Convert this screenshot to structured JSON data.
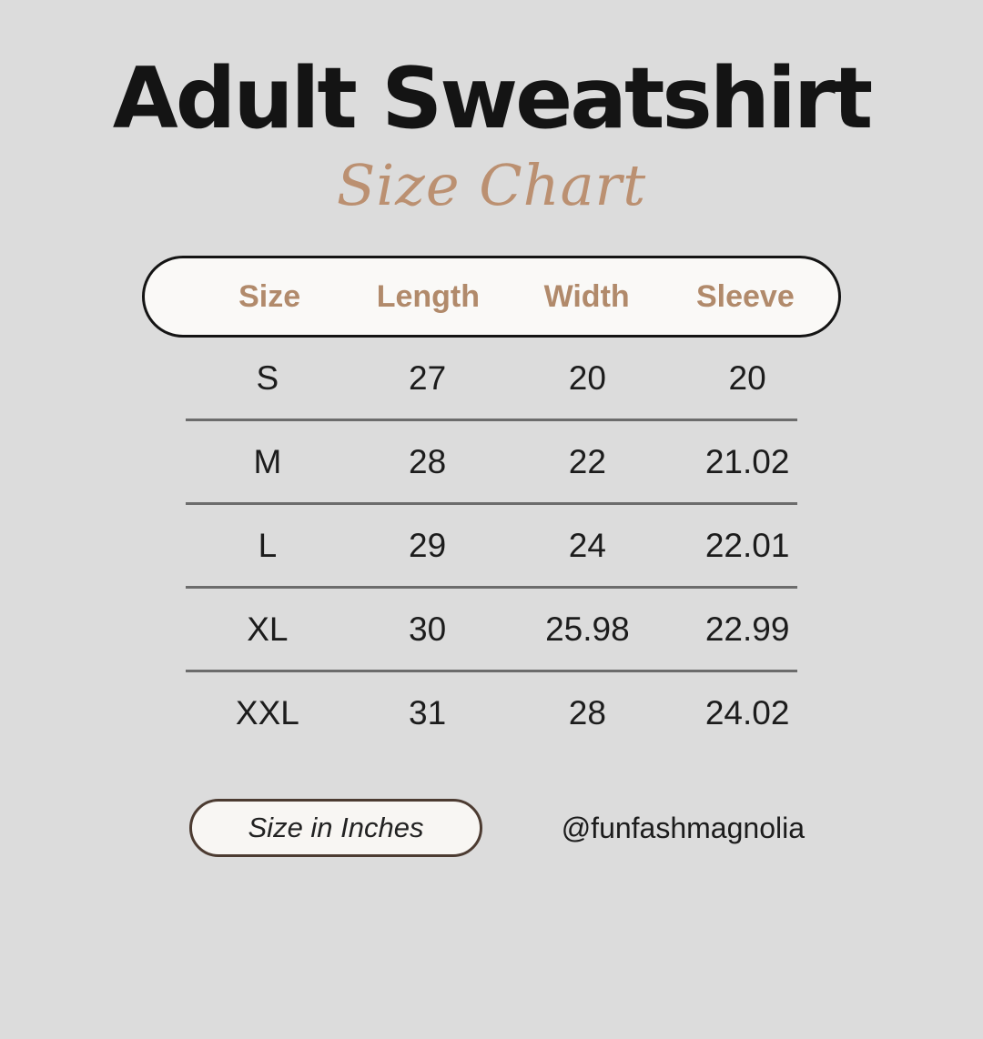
{
  "page": {
    "background_color": "#dcdcdc",
    "accent_color": "#b18a6b",
    "title": "Adult Sweatshirt",
    "subtitle": "Size Chart"
  },
  "table": {
    "columns": [
      "Size",
      "Length",
      "Width",
      "Sleeve"
    ],
    "rows": [
      {
        "size": "S",
        "length": "27",
        "width": "20",
        "sleeve": "20"
      },
      {
        "size": "M",
        "length": "28",
        "width": "22",
        "sleeve": "21.02"
      },
      {
        "size": "L",
        "length": "29",
        "width": "24",
        "sleeve": "22.01"
      },
      {
        "size": "XL",
        "length": "30",
        "width": "25.98",
        "sleeve": "22.99"
      },
      {
        "size": "XXL",
        "length": "31",
        "width": "28",
        "sleeve": "24.02"
      }
    ]
  },
  "footer": {
    "unit_label": "Size in Inches",
    "handle": "@funfashmagnolia"
  },
  "chart_data": {
    "type": "table",
    "title": "Adult Sweatshirt Size Chart",
    "unit": "inches",
    "columns": [
      "Size",
      "Length",
      "Width",
      "Sleeve"
    ],
    "rows": [
      [
        "S",
        27,
        20,
        20
      ],
      [
        "M",
        28,
        22,
        21.02
      ],
      [
        "L",
        29,
        24,
        22.01
      ],
      [
        "XL",
        30,
        25.98,
        22.99
      ],
      [
        "XXL",
        31,
        28,
        24.02
      ]
    ]
  }
}
